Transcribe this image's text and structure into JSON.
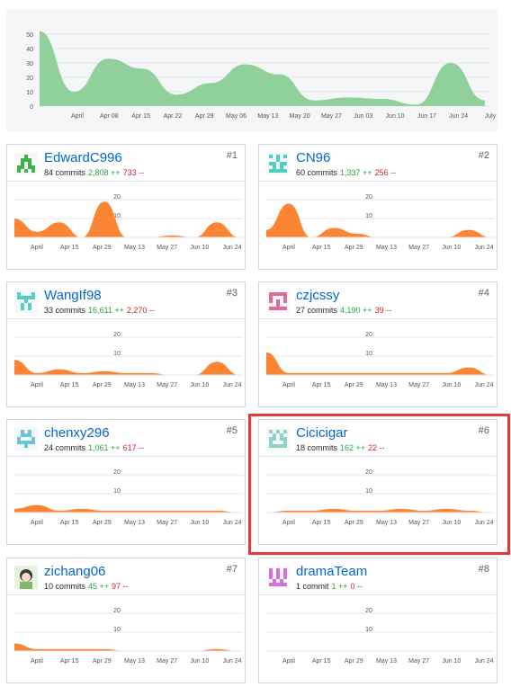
{
  "main_chart": {
    "type": "area",
    "y_ticks": [
      "0",
      "10",
      "20",
      "30",
      "40",
      "50"
    ],
    "x_ticks": [
      "April",
      "Apr 08",
      "Apr 15",
      "Apr 22",
      "Apr 29",
      "May 06",
      "May 13",
      "May 20",
      "May 27",
      "Jun 03",
      "Jun 10",
      "Jun 17",
      "Jun 24",
      "July"
    ],
    "ylim": [
      0,
      55
    ],
    "color": "#90d19b",
    "values": [
      52,
      10,
      33,
      26,
      8,
      16,
      29,
      22,
      4,
      6,
      5,
      1,
      30,
      4
    ]
  },
  "card_x_ticks": [
    "April",
    "Apr 15",
    "Apr 29",
    "May 13",
    "May 27",
    "Jun 10",
    "Jun 24"
  ],
  "card_y_ticks": [
    "10",
    "20"
  ],
  "card_ylim": [
    0,
    22
  ],
  "area_color": "#fb8532",
  "contributors": [
    {
      "rank": "#1",
      "name": "EdwardC996",
      "commits": "84 commits",
      "additions": "2,808 ++",
      "deletions": "733 --",
      "avatar_color": "#44b144",
      "avatar_icon": "identicon-icon",
      "values": [
        10,
        3,
        8,
        0,
        19,
        0,
        0,
        1,
        0,
        8,
        0
      ]
    },
    {
      "rank": "#2",
      "name": "CN96",
      "commits": "60 commits",
      "additions": "1,337 ++",
      "deletions": "256 --",
      "avatar_color": "#4fcfc5",
      "avatar_icon": "identicon-icon",
      "values": [
        4,
        18,
        0,
        5,
        2,
        0,
        0,
        0,
        0,
        4,
        0
      ]
    },
    {
      "rank": "#3",
      "name": "WangIf98",
      "commits": "33 commits",
      "additions": "16,611 ++",
      "deletions": "2,270 --",
      "avatar_color": "#4fcfc5",
      "avatar_icon": "identicon-icon",
      "values": [
        8,
        1,
        3,
        1,
        2,
        1,
        1,
        0,
        0,
        7,
        0
      ]
    },
    {
      "rank": "#4",
      "name": "czjcssy",
      "commits": "27 commits",
      "additions": "4,190 ++",
      "deletions": "39 --",
      "avatar_color": "#e06a98",
      "avatar_icon": "identicon-icon",
      "values": [
        12,
        1,
        1,
        1,
        1,
        1,
        1,
        1,
        1,
        4,
        0
      ]
    },
    {
      "rank": "#5",
      "name": "chenxy296",
      "commits": "24 commits",
      "additions": "1,061 ++",
      "deletions": "617 --",
      "avatar_color": "#6cc4dc",
      "avatar_icon": "identicon-icon",
      "values": [
        2,
        4,
        1,
        2,
        1,
        1,
        1,
        1,
        1,
        1,
        0
      ]
    },
    {
      "rank": "#6",
      "name": "Cicicigar",
      "commits": "18 commits",
      "additions": "162 ++",
      "deletions": "22 --",
      "avatar_color": "#8fd3c8",
      "avatar_icon": "identicon-icon",
      "values": [
        0,
        1,
        1,
        2,
        1,
        1,
        2,
        1,
        2,
        1,
        0
      ]
    },
    {
      "rank": "#7",
      "name": "zichang06",
      "commits": "10 commits",
      "additions": "45 ++",
      "deletions": "97 --",
      "avatar_color": "#7cba6a",
      "avatar_icon": "anime-avatar-icon",
      "values": [
        4,
        1,
        1,
        1,
        1,
        0,
        0,
        0,
        0,
        1,
        0
      ]
    },
    {
      "rank": "#8",
      "name": "dramaTeam",
      "commits": "1 commit",
      "additions": "1 ++",
      "deletions": "0 --",
      "avatar_color": "#d56fd9",
      "avatar_icon": "identicon-icon",
      "values": [
        0,
        0,
        0,
        0,
        0,
        0,
        0,
        0,
        0,
        0,
        0
      ]
    }
  ]
}
